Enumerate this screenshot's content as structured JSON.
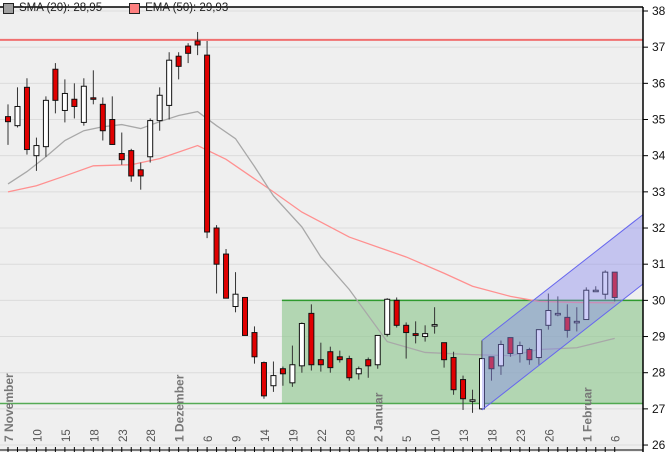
{
  "legend": [
    {
      "label": "SMA (20): 28,95",
      "color": "#a0a0a0"
    },
    {
      "label": "EMA (50): 29,93",
      "color": "#ff8080"
    }
  ],
  "chart_data": {
    "type": "candlestick",
    "title": "",
    "xlabel": "",
    "ylabel": "",
    "ylim": [
      26,
      38
    ],
    "y_ticks": [
      "26",
      "27",
      "28",
      "29",
      "30",
      "31",
      "32",
      "33",
      "34",
      "35",
      "36",
      "37",
      "38"
    ],
    "y_axis_side": "right",
    "grid": true,
    "legend_placement": "top-left",
    "colors": {
      "up": "#ffffff",
      "down": "#e00000",
      "sma": "#a8a8a8",
      "ema": "#ff9090",
      "resistance": "#f07070",
      "range_zone": "#8cc78c",
      "range_line": "#2e9a2e",
      "channel": "#8888ee"
    },
    "x_ticks": [
      {
        "date": "2011-11-07",
        "label": "7 November",
        "major": true
      },
      {
        "date": "2011-11-10",
        "label": "10"
      },
      {
        "date": "2011-11-15",
        "label": "15"
      },
      {
        "date": "2011-11-18",
        "label": "18"
      },
      {
        "date": "2011-11-23",
        "label": "23"
      },
      {
        "date": "2011-11-28",
        "label": "28"
      },
      {
        "date": "2011-12-01",
        "label": "1 Dezember",
        "major": true
      },
      {
        "date": "2011-12-06",
        "label": "6"
      },
      {
        "date": "2011-12-09",
        "label": "9"
      },
      {
        "date": "2011-12-14",
        "label": "14"
      },
      {
        "date": "2011-12-19",
        "label": "19"
      },
      {
        "date": "2011-12-22",
        "label": "22"
      },
      {
        "date": "2011-12-28",
        "label": "28"
      },
      {
        "date": "2012-01-02",
        "label": "2 Januar",
        "major": true
      },
      {
        "date": "2012-01-05",
        "label": "5"
      },
      {
        "date": "2012-01-10",
        "label": "10"
      },
      {
        "date": "2012-01-13",
        "label": "13"
      },
      {
        "date": "2012-01-18",
        "label": "18"
      },
      {
        "date": "2012-01-23",
        "label": "23"
      },
      {
        "date": "2012-01-26",
        "label": "26"
      },
      {
        "date": "2012-02-01",
        "label": "1 Februar",
        "major": true
      },
      {
        "date": "2012-02-06",
        "label": "6"
      }
    ],
    "candles": [
      {
        "date": "2011-11-07",
        "o": 35.08,
        "h": 35.42,
        "l": 34.3,
        "c": 34.94
      },
      {
        "date": "2011-11-08",
        "o": 34.83,
        "h": 35.89,
        "l": 34.78,
        "c": 35.36
      },
      {
        "date": "2011-11-09",
        "o": 35.89,
        "h": 36.14,
        "l": 34.03,
        "c": 34.17
      },
      {
        "date": "2011-11-10",
        "o": 34.0,
        "h": 34.5,
        "l": 33.58,
        "c": 34.28
      },
      {
        "date": "2011-11-11",
        "o": 34.25,
        "h": 35.64,
        "l": 33.97,
        "c": 35.53
      },
      {
        "date": "2011-11-14",
        "o": 36.39,
        "h": 36.56,
        "l": 35.17,
        "c": 35.53
      },
      {
        "date": "2011-11-15",
        "o": 35.25,
        "h": 36.11,
        "l": 34.92,
        "c": 35.72
      },
      {
        "date": "2011-11-16",
        "o": 35.56,
        "h": 36.0,
        "l": 35.03,
        "c": 35.36
      },
      {
        "date": "2011-11-17",
        "o": 34.92,
        "h": 36.14,
        "l": 34.83,
        "c": 35.92
      },
      {
        "date": "2011-11-18",
        "o": 35.6,
        "h": 36.36,
        "l": 35.42,
        "c": 35.58
      },
      {
        "date": "2011-11-21",
        "o": 35.42,
        "h": 35.61,
        "l": 34.42,
        "c": 34.69
      },
      {
        "date": "2011-11-22",
        "o": 35.0,
        "h": 35.64,
        "l": 34.3,
        "c": 34.31
      },
      {
        "date": "2011-11-23",
        "o": 34.06,
        "h": 34.64,
        "l": 33.75,
        "c": 33.89
      },
      {
        "date": "2011-11-24",
        "o": 34.14,
        "h": 34.19,
        "l": 33.28,
        "c": 33.44
      },
      {
        "date": "2011-11-25",
        "o": 33.61,
        "h": 33.81,
        "l": 33.06,
        "c": 33.44
      },
      {
        "date": "2011-11-28",
        "o": 33.97,
        "h": 35.03,
        "l": 33.81,
        "c": 34.97
      },
      {
        "date": "2011-11-29",
        "o": 34.97,
        "h": 35.89,
        "l": 34.69,
        "c": 35.67
      },
      {
        "date": "2011-11-30",
        "o": 35.39,
        "h": 36.86,
        "l": 35.0,
        "c": 36.64
      },
      {
        "date": "2011-12-01",
        "o": 36.75,
        "h": 36.86,
        "l": 36.11,
        "c": 36.47
      },
      {
        "date": "2011-12-02",
        "o": 37.03,
        "h": 37.11,
        "l": 36.56,
        "c": 36.83
      },
      {
        "date": "2011-12-05",
        "o": 37.17,
        "h": 37.42,
        "l": 36.78,
        "c": 37.06
      },
      {
        "date": "2011-12-06",
        "o": 36.78,
        "h": 37.17,
        "l": 31.72,
        "c": 31.89
      },
      {
        "date": "2011-12-07",
        "o": 32.0,
        "h": 32.08,
        "l": 30.19,
        "c": 31.0
      },
      {
        "date": "2011-12-08",
        "o": 31.28,
        "h": 31.42,
        "l": 30.06,
        "c": 30.06
      },
      {
        "date": "2011-12-09",
        "o": 29.83,
        "h": 30.78,
        "l": 29.67,
        "c": 30.17
      },
      {
        "date": "2011-12-12",
        "o": 30.08,
        "h": 30.08,
        "l": 29.03,
        "c": 29.03
      },
      {
        "date": "2011-12-13",
        "o": 29.11,
        "h": 29.28,
        "l": 28.25,
        "c": 28.44
      },
      {
        "date": "2011-12-14",
        "o": 28.28,
        "h": 28.31,
        "l": 27.28,
        "c": 27.36
      },
      {
        "date": "2011-12-15",
        "o": 27.64,
        "h": 28.31,
        "l": 27.47,
        "c": 27.92
      },
      {
        "date": "2011-12-16",
        "o": 28.11,
        "h": 28.17,
        "l": 27.64,
        "c": 27.97
      },
      {
        "date": "2011-12-19",
        "o": 27.72,
        "h": 28.75,
        "l": 27.61,
        "c": 28.22
      },
      {
        "date": "2011-12-20",
        "o": 28.19,
        "h": 29.39,
        "l": 28.0,
        "c": 29.36
      },
      {
        "date": "2011-12-21",
        "o": 29.64,
        "h": 29.89,
        "l": 28.06,
        "c": 28.22
      },
      {
        "date": "2011-12-22",
        "o": 28.36,
        "h": 28.83,
        "l": 28.03,
        "c": 28.22
      },
      {
        "date": "2011-12-23",
        "o": 28.58,
        "h": 28.72,
        "l": 28.0,
        "c": 28.14
      },
      {
        "date": "2011-12-27",
        "o": 28.44,
        "h": 28.61,
        "l": 28.28,
        "c": 28.36
      },
      {
        "date": "2011-12-28",
        "o": 28.39,
        "h": 28.47,
        "l": 27.78,
        "c": 27.86
      },
      {
        "date": "2011-12-29",
        "o": 27.97,
        "h": 28.17,
        "l": 27.81,
        "c": 28.11
      },
      {
        "date": "2011-12-30",
        "o": 28.36,
        "h": 28.42,
        "l": 27.86,
        "c": 28.19
      },
      {
        "date": "2012-01-02",
        "o": 28.22,
        "h": 29.03,
        "l": 28.11,
        "c": 29.03
      },
      {
        "date": "2012-01-03",
        "o": 29.06,
        "h": 30.06,
        "l": 29.0,
        "c": 30.03
      },
      {
        "date": "2012-01-04",
        "o": 30.0,
        "h": 30.08,
        "l": 29.25,
        "c": 29.31
      },
      {
        "date": "2012-01-05",
        "o": 29.31,
        "h": 29.39,
        "l": 28.39,
        "c": 29.11
      },
      {
        "date": "2012-01-06",
        "o": 29.08,
        "h": 29.42,
        "l": 28.81,
        "c": 29.03
      },
      {
        "date": "2012-01-09",
        "o": 29.0,
        "h": 29.31,
        "l": 28.86,
        "c": 29.08
      },
      {
        "date": "2012-01-10",
        "o": 29.33,
        "h": 29.81,
        "l": 29.08,
        "c": 29.33
      },
      {
        "date": "2012-01-11",
        "o": 28.83,
        "h": 28.83,
        "l": 28.14,
        "c": 28.36
      },
      {
        "date": "2012-01-12",
        "o": 28.42,
        "h": 28.58,
        "l": 27.39,
        "c": 27.53
      },
      {
        "date": "2012-01-13",
        "o": 27.81,
        "h": 27.92,
        "l": 26.97,
        "c": 27.28
      },
      {
        "date": "2012-01-16",
        "o": 27.25,
        "h": 27.53,
        "l": 26.89,
        "c": 27.25
      },
      {
        "date": "2012-01-17",
        "o": 27.0,
        "h": 28.89,
        "l": 26.97,
        "c": 28.39
      },
      {
        "date": "2012-01-18",
        "o": 28.44,
        "h": 28.44,
        "l": 27.78,
        "c": 28.11
      },
      {
        "date": "2012-01-19",
        "o": 28.19,
        "h": 28.89,
        "l": 27.94,
        "c": 28.78
      },
      {
        "date": "2012-01-20",
        "o": 28.97,
        "h": 28.97,
        "l": 28.44,
        "c": 28.53
      },
      {
        "date": "2012-01-23",
        "o": 28.53,
        "h": 28.86,
        "l": 28.28,
        "c": 28.75
      },
      {
        "date": "2012-01-24",
        "o": 28.64,
        "h": 28.69,
        "l": 28.22,
        "c": 28.36
      },
      {
        "date": "2012-01-25",
        "o": 28.42,
        "h": 29.19,
        "l": 28.22,
        "c": 29.19
      },
      {
        "date": "2012-01-26",
        "o": 29.31,
        "h": 30.19,
        "l": 29.19,
        "c": 29.72
      },
      {
        "date": "2012-01-27",
        "o": 29.64,
        "h": 30.11,
        "l": 29.56,
        "c": 29.64
      },
      {
        "date": "2012-01-30",
        "o": 29.53,
        "h": 29.89,
        "l": 28.97,
        "c": 29.17
      },
      {
        "date": "2012-01-31",
        "o": 29.42,
        "h": 29.81,
        "l": 29.14,
        "c": 29.42
      },
      {
        "date": "2012-02-01",
        "o": 29.47,
        "h": 30.36,
        "l": 29.47,
        "c": 30.28
      },
      {
        "date": "2012-02-02",
        "o": 30.28,
        "h": 30.39,
        "l": 30.25,
        "c": 30.28
      },
      {
        "date": "2012-02-03",
        "o": 30.17,
        "h": 30.83,
        "l": 30.03,
        "c": 30.78
      },
      {
        "date": "2012-02-06",
        "o": 30.78,
        "h": 30.78,
        "l": 29.97,
        "c": 30.08
      }
    ],
    "sma20": [
      {
        "date": "2011-11-07",
        "value": 33.22
      },
      {
        "date": "2011-11-09",
        "value": 33.56
      },
      {
        "date": "2011-11-11",
        "value": 33.97
      },
      {
        "date": "2011-11-15",
        "value": 34.42
      },
      {
        "date": "2011-11-17",
        "value": 34.69
      },
      {
        "date": "2011-11-21",
        "value": 34.8
      },
      {
        "date": "2011-11-23",
        "value": 34.86
      },
      {
        "date": "2011-11-25",
        "value": 34.75
      },
      {
        "date": "2011-11-29",
        "value": 34.94
      },
      {
        "date": "2011-12-01",
        "value": 35.11
      },
      {
        "date": "2011-12-05",
        "value": 35.22
      },
      {
        "date": "2011-12-07",
        "value": 34.83
      },
      {
        "date": "2011-12-09",
        "value": 34.47
      },
      {
        "date": "2011-12-13",
        "value": 33.7
      },
      {
        "date": "2011-12-15",
        "value": 32.89
      },
      {
        "date": "2011-12-20",
        "value": 32.03
      },
      {
        "date": "2011-12-22",
        "value": 31.2
      },
      {
        "date": "2011-12-28",
        "value": 30.3
      },
      {
        "date": "2012-01-03",
        "value": 28.86
      },
      {
        "date": "2012-01-09",
        "value": 28.56
      },
      {
        "date": "2012-01-16",
        "value": 28.5
      },
      {
        "date": "2012-01-20",
        "value": 28.47
      },
      {
        "date": "2012-01-25",
        "value": 28.64
      },
      {
        "date": "2012-01-31",
        "value": 28.69
      },
      {
        "date": "2012-02-06",
        "value": 28.95
      }
    ],
    "ema50": [
      {
        "date": "2011-11-07",
        "value": 33.0
      },
      {
        "date": "2011-11-10",
        "value": 33.17
      },
      {
        "date": "2011-11-15",
        "value": 33.44
      },
      {
        "date": "2011-11-18",
        "value": 33.72
      },
      {
        "date": "2011-11-24",
        "value": 33.75
      },
      {
        "date": "2011-11-29",
        "value": 33.92
      },
      {
        "date": "2011-12-05",
        "value": 34.28
      },
      {
        "date": "2011-12-08",
        "value": 33.9
      },
      {
        "date": "2011-12-15",
        "value": 33.0
      },
      {
        "date": "2011-12-20",
        "value": 32.44
      },
      {
        "date": "2011-12-28",
        "value": 31.75
      },
      {
        "date": "2012-01-05",
        "value": 31.2
      },
      {
        "date": "2012-01-11",
        "value": 30.75
      },
      {
        "date": "2012-01-16",
        "value": 30.39
      },
      {
        "date": "2012-01-20",
        "value": 30.11
      },
      {
        "date": "2012-01-25",
        "value": 29.97
      },
      {
        "date": "2012-01-31",
        "value": 29.94
      },
      {
        "date": "2012-02-06",
        "value": 29.93
      }
    ],
    "annotations": {
      "resistance_line": {
        "value": 37.2
      },
      "support_line": {
        "value": 27.15
      },
      "range_zone": {
        "start_date": "2011-12-16",
        "low": 27.15,
        "high": 30.0
      },
      "channel": {
        "start_date": "2012-01-17",
        "lower_start": 26.97,
        "upper_start": 28.89,
        "slope_per_day": 0.205
      }
    }
  }
}
